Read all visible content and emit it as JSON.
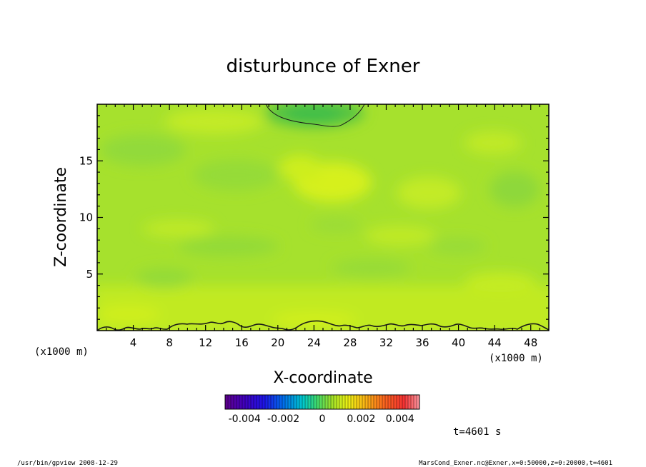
{
  "chart_data": {
    "type": "heatmap",
    "title": "disturbunce of Exner",
    "xlabel": "X-coordinate",
    "ylabel": "Z-coordinate",
    "x_unit": "(x1000 m)",
    "y_unit": "(x1000 m)",
    "xlim": [
      0,
      50
    ],
    "ylim": [
      0,
      20
    ],
    "x_ticks": [
      4,
      8,
      12,
      16,
      20,
      24,
      28,
      32,
      36,
      40,
      44,
      48
    ],
    "y_ticks": [
      5,
      10,
      15
    ],
    "colorbar": {
      "ticks": [
        "-0.004",
        "-0.002",
        "0",
        "0.002",
        "0.004"
      ],
      "tick_values": [
        -0.004,
        -0.002,
        0,
        0.002,
        0.004
      ],
      "range": [
        -0.005,
        0.005
      ]
    },
    "field_summary": {
      "background_value": 0.0005,
      "top_center_min": {
        "x": 24,
        "z": 19.5,
        "value": -0.0005
      },
      "surface_layer_max": {
        "z_max": 0.7,
        "value": 0.0015
      },
      "mid_max": {
        "x": 25,
        "z": 13.5,
        "value": 0.0012
      }
    },
    "time_label": "t=4601 s"
  },
  "footer": {
    "left": "/usr/bin/gpview   2008-12-29",
    "right": "MarsCond_Exner.nc@Exner,x=0:50000,z=0:20000,t=4601"
  },
  "colors": {
    "plot_base": "#a6e12d",
    "yellow_patch": "#d2ef1e",
    "green_patch": "#8fd93a",
    "dark_green": "#62c83c"
  }
}
